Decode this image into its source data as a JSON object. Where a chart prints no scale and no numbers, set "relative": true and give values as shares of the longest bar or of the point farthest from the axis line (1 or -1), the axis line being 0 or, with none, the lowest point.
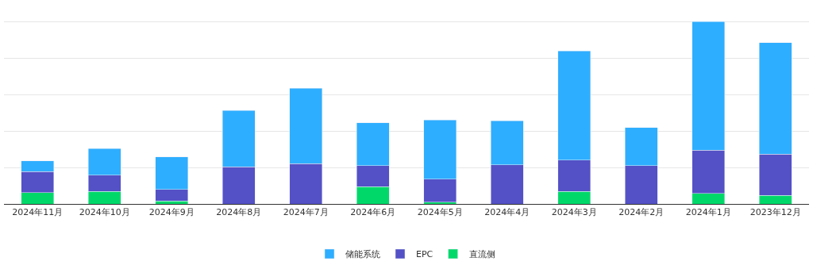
{
  "chart_data": {
    "type": "bar",
    "stacked": true,
    "relative": true,
    "grid": "y",
    "legend": "bottom",
    "categories": [
      "2024年11月",
      "2024年10月",
      "2024年9月",
      "2024年8月",
      "2024年7月",
      "2024年6月",
      "2024年5月",
      "2024年4月",
      "2024年3月",
      "2024年2月",
      "2024年1月",
      "2023年12月"
    ],
    "series": [
      {
        "name": "直流侧",
        "color": "#00d96a",
        "values": [
          0.063,
          0.068,
          0.016,
          0,
          0,
          0.094,
          0.01,
          0,
          0.068,
          0,
          0.058,
          0.047
        ]
      },
      {
        "name": "EPC",
        "color": "#5451c6",
        "values": [
          0.115,
          0.089,
          0.063,
          0.204,
          0.22,
          0.115,
          0.126,
          0.215,
          0.173,
          0.209,
          0.236,
          0.225
        ]
      },
      {
        "name": "储能系统",
        "color": "#2eaeff",
        "values": [
          0.058,
          0.147,
          0.178,
          0.309,
          0.414,
          0.236,
          0.325,
          0.241,
          0.597,
          0.209,
          0.706,
          0.613
        ]
      }
    ]
  }
}
